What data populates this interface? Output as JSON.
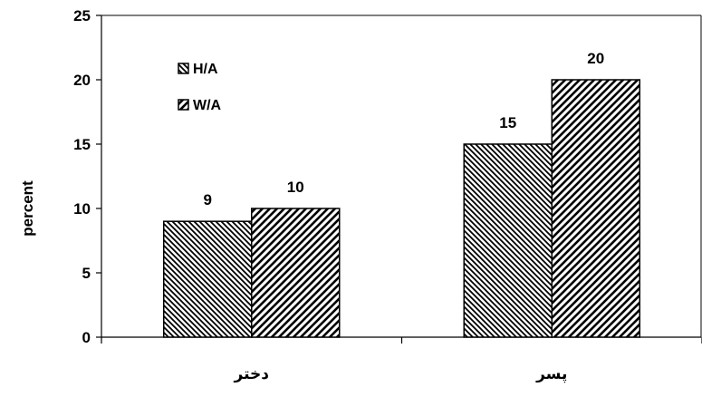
{
  "chart_data": {
    "type": "bar",
    "categories": [
      "دختر",
      "پسر"
    ],
    "series": [
      {
        "name": "H/A",
        "values": [
          9,
          15
        ],
        "pattern": "backslash-hatch"
      },
      {
        "name": "W/A",
        "values": [
          10,
          20
        ],
        "pattern": "slash-hatch"
      }
    ],
    "ylabel": "percent",
    "xlabel": "",
    "title": "",
    "ylim": [
      0,
      25
    ],
    "yticks": [
      0,
      5,
      10,
      15,
      20,
      25
    ],
    "grid": false,
    "legend_position": "top-left",
    "data_labels": true,
    "colors": {
      "bar_fill": "#ffffff",
      "hatch": "#000000",
      "axis": "#000000"
    }
  }
}
